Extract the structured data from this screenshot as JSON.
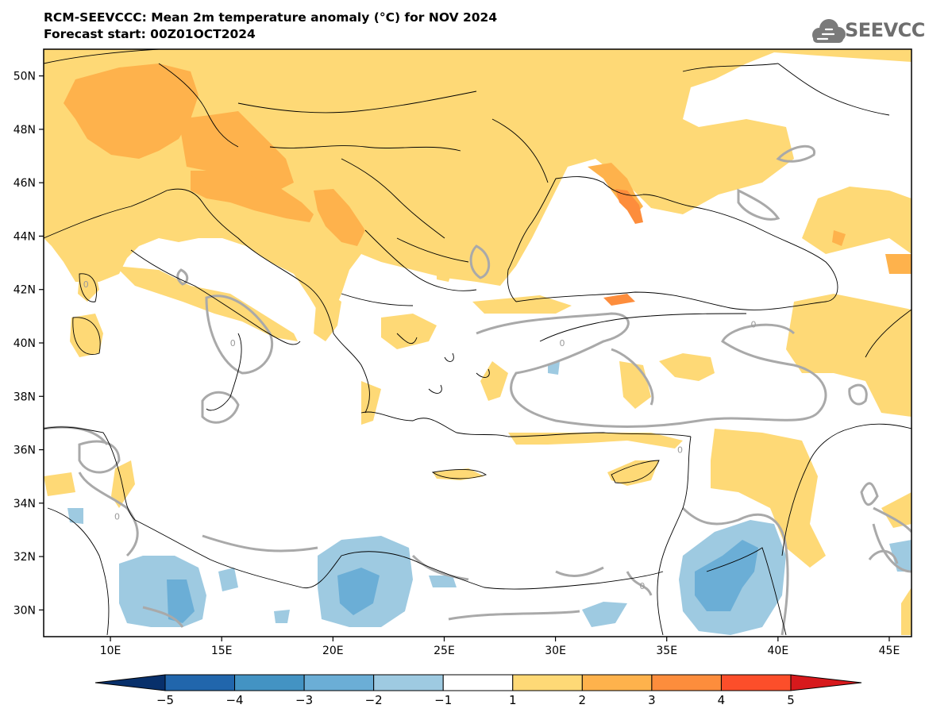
{
  "header": {
    "title_line1": "RCM-SEEVCCC: Mean 2m temperature anomaly (°C) for NOV 2024",
    "title_line2": "Forecast start: 00Z01OCT2024"
  },
  "logo": {
    "text": "SEEVCCC",
    "icon": "cloud-logo-icon"
  },
  "map": {
    "lon_range": [
      7,
      46
    ],
    "lat_range": [
      29,
      51
    ],
    "x_ticks": [
      {
        "lon": 10,
        "label": "10E"
      },
      {
        "lon": 15,
        "label": "15E"
      },
      {
        "lon": 20,
        "label": "20E"
      },
      {
        "lon": 25,
        "label": "25E"
      },
      {
        "lon": 30,
        "label": "30E"
      },
      {
        "lon": 35,
        "label": "35E"
      },
      {
        "lon": 40,
        "label": "40E"
      },
      {
        "lon": 45,
        "label": "45E"
      }
    ],
    "y_ticks": [
      {
        "lat": 50,
        "label": "50N"
      },
      {
        "lat": 48,
        "label": "48N"
      },
      {
        "lat": 46,
        "label": "46N"
      },
      {
        "lat": 44,
        "label": "44N"
      },
      {
        "lat": 42,
        "label": "42N"
      },
      {
        "lat": 40,
        "label": "40N"
      },
      {
        "lat": 38,
        "label": "38N"
      },
      {
        "lat": 36,
        "label": "36N"
      },
      {
        "lat": 34,
        "label": "34N"
      },
      {
        "lat": 32,
        "label": "32N"
      },
      {
        "lat": 30,
        "label": "30N"
      }
    ],
    "zero_contour_labels": [
      {
        "lon": 8.9,
        "lat": 42.2,
        "label": "0"
      },
      {
        "lon": 15.5,
        "lat": 40.0,
        "label": "0"
      },
      {
        "lon": 30.3,
        "lat": 40.0,
        "label": "0"
      },
      {
        "lon": 38.9,
        "lat": 40.7,
        "label": "0"
      },
      {
        "lon": 10.3,
        "lat": 33.5,
        "label": "0"
      },
      {
        "lon": 33.9,
        "lat": 30.9,
        "label": "0"
      },
      {
        "lon": 35.6,
        "lat": 36.0,
        "label": "0"
      }
    ]
  },
  "colorbar": {
    "colors": [
      "#2166ac",
      "#4393c3",
      "#6baed6",
      "#9ecae1",
      "#ffffff",
      "#fed976",
      "#feb24c",
      "#fd8d3c",
      "#fc4e2a"
    ],
    "under_color": "#08306b",
    "over_color": "#d7191c",
    "labels": [
      "−5",
      "−4",
      "−3",
      "−2",
      "−1",
      "1",
      "2",
      "3",
      "4",
      "5"
    ]
  }
}
